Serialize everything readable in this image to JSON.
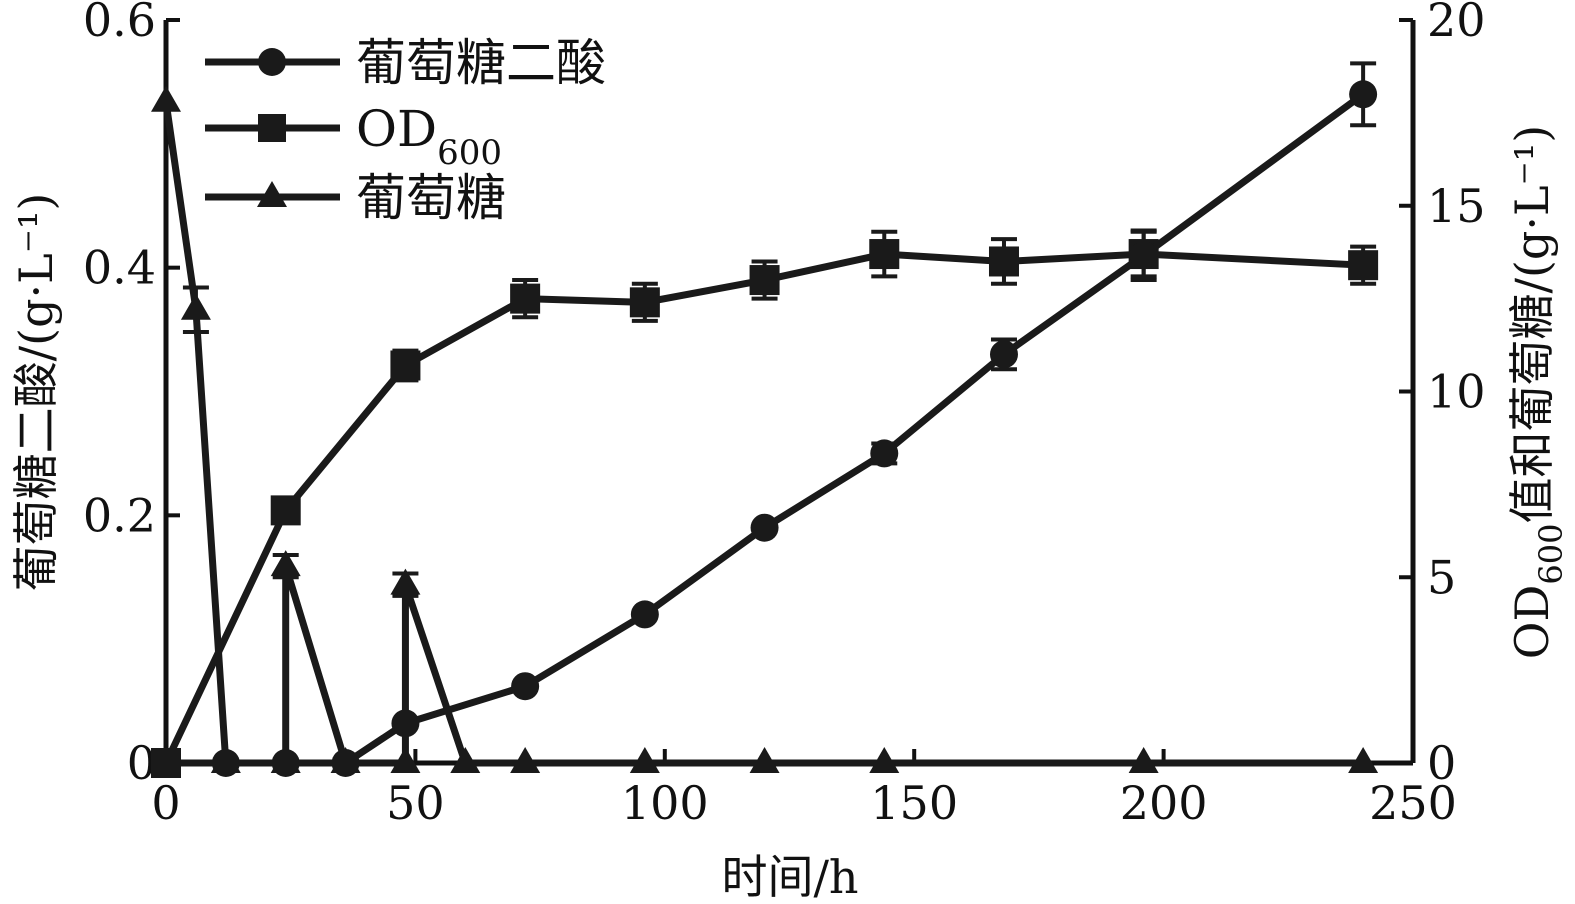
{
  "chart_data": {
    "type": "line",
    "title": "",
    "xlabel": "时间/h",
    "ylabel_left": "葡萄糖二酸/(g·L⁻¹)",
    "ylabel_right_prefix": "OD",
    "ylabel_right_sub": "600",
    "ylabel_right_suffix": "值和葡萄糖/(g·L⁻¹)",
    "xlim": [
      0,
      250
    ],
    "ylim_left": [
      0,
      0.6
    ],
    "ylim_right": [
      0,
      20
    ],
    "x_ticks": [
      "0",
      "50",
      "100",
      "150",
      "200",
      "250"
    ],
    "y_left_ticks": [
      "0",
      "0.2",
      "0.4",
      "0.6"
    ],
    "y_right_ticks": [
      "0",
      "5",
      "10",
      "15",
      "20"
    ],
    "legend_position": "top-left",
    "grid": false,
    "series": [
      {
        "name": "葡萄糖二酸",
        "axis": "left",
        "marker": "circle",
        "x": [
          0,
          12,
          24,
          36,
          48,
          72,
          96,
          120,
          144,
          168,
          196,
          240
        ],
        "y": [
          0,
          0,
          0,
          0,
          0.032,
          0.062,
          0.12,
          0.19,
          0.25,
          0.33,
          0.41,
          0.54
        ],
        "err": [
          0,
          0,
          0,
          0,
          0,
          0,
          0,
          0,
          0.008,
          0.012,
          0.02,
          0.025
        ]
      },
      {
        "name": "OD",
        "name_sub": "600",
        "axis": "right",
        "marker": "square",
        "x": [
          0,
          24,
          48,
          72,
          96,
          120,
          144,
          168,
          196,
          240
        ],
        "y": [
          0,
          6.8,
          10.7,
          12.5,
          12.4,
          13,
          13.7,
          13.5,
          13.7,
          13.4
        ],
        "err": [
          0,
          0,
          0.4,
          0.5,
          0.5,
          0.5,
          0.6,
          0.6,
          0.6,
          0.5
        ]
      },
      {
        "name": "葡萄糖",
        "axis": "right",
        "marker": "triangle",
        "x": [
          0,
          6,
          12,
          24,
          24,
          36,
          48,
          48,
          60,
          72,
          96,
          120,
          144,
          196,
          240
        ],
        "y": [
          17.8,
          12.2,
          0,
          0,
          5.3,
          0,
          0,
          4.8,
          0,
          0,
          0,
          0,
          0,
          0,
          0
        ],
        "err": [
          0,
          0.6,
          0,
          0,
          0.3,
          0,
          0,
          0.3,
          0,
          0,
          0,
          0,
          0,
          0,
          0
        ]
      }
    ]
  }
}
